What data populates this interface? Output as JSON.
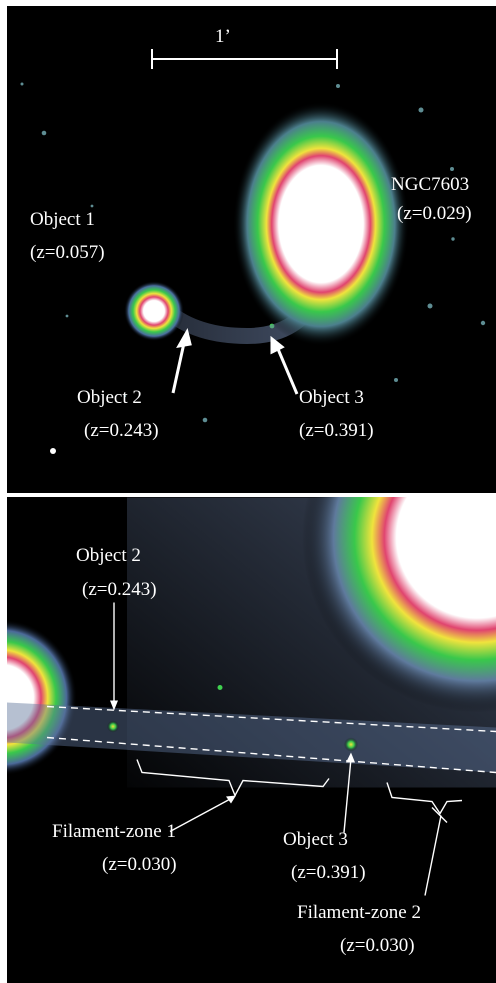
{
  "scale_bar": {
    "label": "1’"
  },
  "top_panel": {
    "labels": {
      "ngc7603_name": "NGC7603",
      "ngc7603_z": "(z=0.029)",
      "object1_name": "Object 1",
      "object1_z": "(z=0.057)",
      "object2_name": "Object 2",
      "object2_z": "(z=0.243)",
      "object3_name": "Object 3",
      "object3_z": "(z=0.391)"
    }
  },
  "bottom_panel": {
    "labels": {
      "object2_name": "Object 2",
      "object2_z": "(z=0.243)",
      "filament1_name": "Filament-zone 1",
      "filament1_z": "(z=0.030)",
      "object3_name": "Object 3",
      "object3_z": "(z=0.391)",
      "filament2_name": "Filament-zone 2",
      "filament2_z": "(z=0.030)"
    }
  },
  "colors": {
    "sky": "#000000",
    "halo_outer": "#6f83a8",
    "halo_green": "#39c84b",
    "halo_yellow": "#f0e33d",
    "halo_red": "#e0446f",
    "core": "#ffffff",
    "annotation": "#ffffff"
  }
}
